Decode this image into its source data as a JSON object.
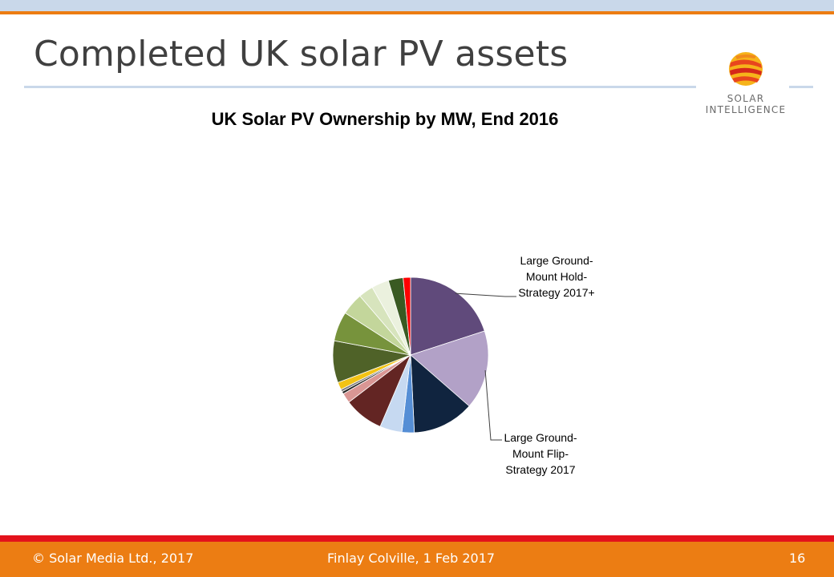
{
  "slide": {
    "title": "Completed UK solar PV assets",
    "logo": {
      "line1": "SOLAR",
      "line2": "INTELLIGENCE"
    },
    "footer": {
      "copyright": "© Solar Media Ltd., 2017",
      "author_date": "Finlay Colville, 1 Feb 2017",
      "page_number": "16"
    }
  },
  "chart_data": {
    "type": "pie",
    "title": "UK Solar PV Ownership by MW, End 2016",
    "start_angle_deg": 0,
    "direction": "clockwise",
    "slices": [
      {
        "label": "Large Ground-Mount Hold-Strategy 2017+",
        "value": 19.5,
        "color": "#604a7b"
      },
      {
        "label": "Large Ground-Mount Flip-Strategy 2017",
        "value": 16.0,
        "color": "#b2a1c7"
      },
      {
        "label": "",
        "value": 12.5,
        "color": "#10243f"
      },
      {
        "label": "",
        "value": 2.5,
        "color": "#558ed5"
      },
      {
        "label": "",
        "value": 4.5,
        "color": "#c6d9f1"
      },
      {
        "label": "",
        "value": 8.0,
        "color": "#632523"
      },
      {
        "label": "",
        "value": 2.0,
        "color": "#d99694"
      },
      {
        "label": "",
        "value": 0.5,
        "color": "#262626"
      },
      {
        "label": "",
        "value": 0.5,
        "color": "#7f7f7f"
      },
      {
        "label": "",
        "value": 1.5,
        "color": "#f2c314"
      },
      {
        "label": "",
        "value": 8.5,
        "color": "#4f6228"
      },
      {
        "label": "",
        "value": 6.0,
        "color": "#77933c"
      },
      {
        "label": "",
        "value": 4.5,
        "color": "#c3d69b"
      },
      {
        "label": "",
        "value": 3.0,
        "color": "#d7e4bd"
      },
      {
        "label": "",
        "value": 3.5,
        "color": "#ebf1de"
      },
      {
        "label": "",
        "value": 3.0,
        "color": "#3a5a22"
      },
      {
        "label": "",
        "value": 1.5,
        "color": "#ff0000"
      }
    ],
    "annotations": [
      {
        "slice": 0,
        "lines": [
          "Large Ground-",
          "Mount Hold-",
          "Strategy 2017+"
        ]
      },
      {
        "slice": 1,
        "lines": [
          "Large Ground-",
          "Mount Flip-",
          "Strategy 2017"
        ]
      }
    ],
    "legend": "none"
  }
}
